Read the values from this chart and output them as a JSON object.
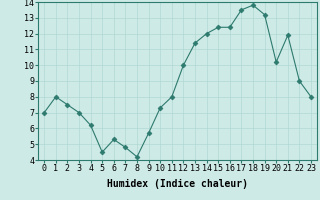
{
  "x": [
    0,
    1,
    2,
    3,
    4,
    5,
    6,
    7,
    8,
    9,
    10,
    11,
    12,
    13,
    14,
    15,
    16,
    17,
    18,
    19,
    20,
    21,
    22,
    23
  ],
  "y": [
    7.0,
    8.0,
    7.5,
    7.0,
    6.2,
    4.5,
    5.3,
    4.8,
    4.2,
    5.7,
    7.3,
    8.0,
    10.0,
    11.4,
    12.0,
    12.4,
    12.4,
    13.5,
    13.8,
    13.2,
    10.2,
    11.9,
    9.0,
    8.0
  ],
  "xlabel": "Humidex (Indice chaleur)",
  "ylim": [
    4,
    14
  ],
  "xlim": [
    -0.5,
    23.5
  ],
  "yticks": [
    4,
    5,
    6,
    7,
    8,
    9,
    10,
    11,
    12,
    13,
    14
  ],
  "xticks": [
    0,
    1,
    2,
    3,
    4,
    5,
    6,
    7,
    8,
    9,
    10,
    11,
    12,
    13,
    14,
    15,
    16,
    17,
    18,
    19,
    20,
    21,
    22,
    23
  ],
  "line_color": "#2d7a6e",
  "marker": "D",
  "marker_size": 2.5,
  "bg_color": "#ceeae6",
  "grid_color": "#b0d8d2",
  "tick_fontsize": 6,
  "xlabel_fontsize": 7
}
